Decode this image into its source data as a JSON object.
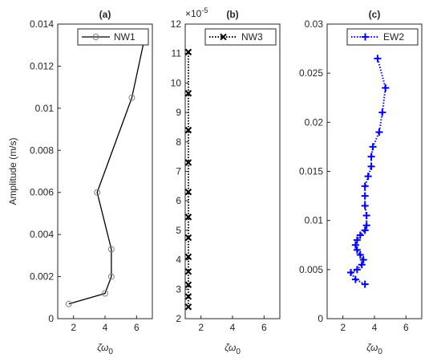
{
  "chart_data": [
    {
      "type": "line",
      "title": "(a)",
      "ylabel": "Amplitude (m/s)",
      "xlabel": "ζω",
      "xlabel_sub": "0",
      "xlim": [
        1,
        7
      ],
      "xticks": [
        2,
        4,
        6
      ],
      "ylim": [
        0,
        0.014
      ],
      "yticks": [
        0,
        0.002,
        0.004,
        0.006,
        0.008,
        0.01,
        0.012,
        0.014
      ],
      "marker": "circle",
      "dash": "solid",
      "series": [
        {
          "name": "NW1",
          "color": "#000000",
          "marker_color": "#808080",
          "x": [
            1.7,
            4.0,
            4.4,
            4.4,
            3.5,
            5.7,
            6.5
          ],
          "values": [
            0.0007,
            0.0012,
            0.002,
            0.0033,
            0.006,
            0.0105,
            0.0133
          ]
        }
      ]
    },
    {
      "type": "line",
      "title": "(b)",
      "xlabel": "ζω",
      "xlabel_sub": "0",
      "exponent": "×10",
      "exponent_sup": "-5",
      "xlim": [
        1,
        7
      ],
      "xticks": [
        2,
        4,
        6
      ],
      "ylim": [
        2,
        12
      ],
      "yticks": [
        2,
        3,
        4,
        5,
        6,
        7,
        8,
        9,
        10,
        11,
        12
      ],
      "marker": "x",
      "dash": "dotted",
      "series": [
        {
          "name": "NW3",
          "color": "#000000",
          "marker_color": "#000000",
          "x": [
            1.2,
            1.2,
            1.2,
            1.2,
            1.2,
            1.2,
            1.2,
            1.2,
            1.2,
            1.2,
            1.2,
            1.2
          ],
          "values": [
            2.4,
            2.75,
            3.15,
            3.6,
            4.1,
            4.75,
            5.45,
            6.3,
            7.3,
            8.4,
            9.65,
            11.05
          ]
        }
      ]
    },
    {
      "type": "line",
      "title": "(c)",
      "xlabel": "ζω",
      "xlabel_sub": "0",
      "xlim": [
        1,
        7
      ],
      "xticks": [
        2,
        4,
        6
      ],
      "ylim": [
        0,
        0.03
      ],
      "yticks": [
        0,
        0.005,
        0.01,
        0.015,
        0.02,
        0.025,
        0.03
      ],
      "marker": "plus",
      "dash": "dotted",
      "series": [
        {
          "name": "EW2",
          "color": "#0000ff",
          "marker_color": "#0000ff",
          "x": [
            3.4,
            2.8,
            2.5,
            2.9,
            3.2,
            3.3,
            3.1,
            2.9,
            2.8,
            2.9,
            3.1,
            3.4,
            3.5,
            3.5,
            3.4,
            3.4,
            3.4,
            3.6,
            3.8,
            3.8,
            3.9,
            4.3,
            4.5,
            4.7,
            4.2
          ],
          "values": [
            0.0035,
            0.004,
            0.0047,
            0.005,
            0.0055,
            0.006,
            0.0065,
            0.007,
            0.0075,
            0.008,
            0.0085,
            0.009,
            0.0095,
            0.0105,
            0.0115,
            0.0125,
            0.0135,
            0.0145,
            0.0155,
            0.0165,
            0.0175,
            0.019,
            0.021,
            0.0235,
            0.0265
          ]
        }
      ]
    }
  ]
}
